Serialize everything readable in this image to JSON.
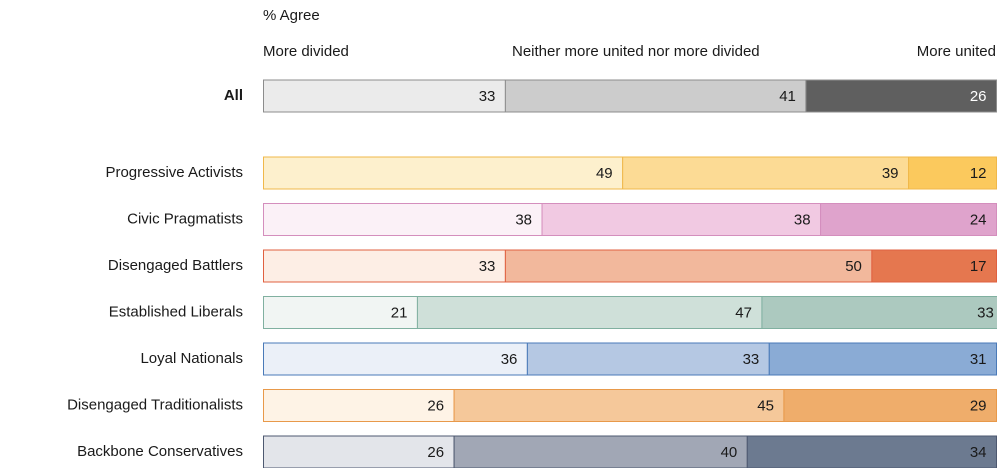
{
  "chart_data": {
    "type": "bar",
    "orientation": "horizontal",
    "stacked": true,
    "subtitle": "% Agree",
    "categories": [
      "All",
      "Progressive Activists",
      "Civic Pragmatists",
      "Disengaged Battlers",
      "Established Liberals",
      "Loyal Nationals",
      "Disengaged Traditionalists",
      "Backbone Conservatives"
    ],
    "xlim": [
      0,
      100
    ],
    "series": [
      {
        "name": "More divided",
        "values": [
          33,
          49,
          38,
          33,
          21,
          36,
          26,
          26
        ],
        "colors": [
          "#ebebeb",
          "#fdf0cd",
          "#fbf1f7",
          "#fdeee5",
          "#f1f5f3",
          "#ebf0f8",
          "#fef3e6",
          "#e3e5ea"
        ]
      },
      {
        "name": "Neither more united nor more divided",
        "values": [
          41,
          39,
          38,
          50,
          47,
          33,
          45,
          40
        ],
        "colors": [
          "#cccccc",
          "#fcdb95",
          "#f1c9e2",
          "#f2b89c",
          "#cfe0d9",
          "#b5c8e3",
          "#f5c89a",
          "#a1a7b5"
        ]
      },
      {
        "name": "More united",
        "values": [
          26,
          12,
          24,
          17,
          33,
          31,
          29,
          34
        ],
        "colors": [
          "#5f5f5f",
          "#fbc95d",
          "#dfa3cc",
          "#e5774f",
          "#acc9bf",
          "#8aabd5",
          "#efad6b",
          "#6c7a90"
        ]
      }
    ],
    "border_colors": [
      "#8c8c8c",
      "#f0b84a",
      "#d48ebd",
      "#e06040",
      "#80b0a0",
      "#4a7ab8",
      "#e8994a",
      "#4d5870"
    ]
  }
}
